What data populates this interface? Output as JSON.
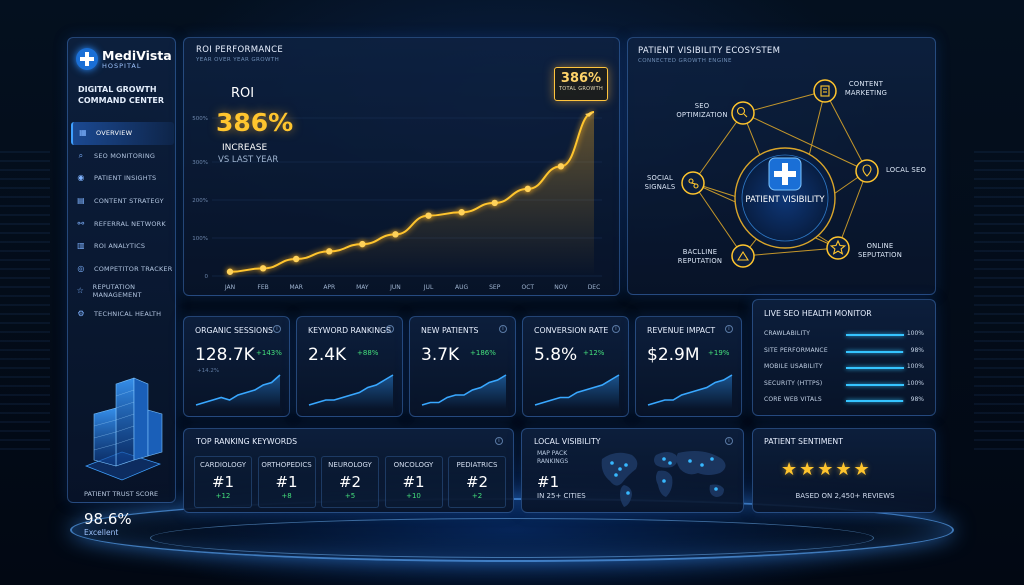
{
  "brand": {
    "name": "MediVista",
    "sub": "HOSPITAL"
  },
  "app_title": "DIGITAL GROWTH COMMAND CENTER",
  "sidebar": {
    "items": [
      {
        "label": "OVERVIEW",
        "icon": "grid-icon"
      },
      {
        "label": "SEO MONITORING",
        "icon": "search-icon"
      },
      {
        "label": "PATIENT INSIGHTS",
        "icon": "users-icon"
      },
      {
        "label": "CONTENT STRATEGY",
        "icon": "document-icon"
      },
      {
        "label": "REFERRAL NETWORK",
        "icon": "network-icon"
      },
      {
        "label": "ROI ANALYTICS",
        "icon": "chart-icon"
      },
      {
        "label": "COMPETITOR TRACKER",
        "icon": "target-icon"
      },
      {
        "label": "REPUTATION MANAGEMENT",
        "icon": "star-icon"
      },
      {
        "label": "TECHNICAL HEALTH",
        "icon": "gear-icon"
      }
    ],
    "active_index": 0,
    "trust": {
      "label": "PATIENT TRUST SCORE",
      "value": "98.6%",
      "status": "Excellent"
    }
  },
  "roi_panel": {
    "title": "ROI PERFORMANCE",
    "subtitle": "YEAR OVER YEAR GROWTH",
    "roi_label": "ROI",
    "roi_value": "386%",
    "increase_label": "INCREASE",
    "vs_label": "VS LAST YEAR",
    "callout_value": "386%",
    "callout_label": "TOTAL GROWTH"
  },
  "chart_data": {
    "type": "line",
    "categories": [
      "JAN",
      "FEB",
      "MAR",
      "APR",
      "MAY",
      "JUN",
      "JUL",
      "AUG",
      "SEP",
      "OCT",
      "NOV",
      "DEC"
    ],
    "yticks": [
      "0",
      "100%",
      "200%",
      "300%",
      "500%"
    ],
    "series": [
      {
        "values": [
          10,
          18,
          40,
          58,
          75,
          98,
          142,
          150,
          172,
          205,
          258,
          386
        ]
      }
    ],
    "ylim": [
      0,
      400
    ],
    "grid": true
  },
  "ecosystem": {
    "title": "PATIENT VISIBILITY ECOSYSTEM",
    "subtitle": "CONNECTED GROWTH ENGINE",
    "center": "PATIENT VISIBILITY",
    "nodes": [
      {
        "label": "SEO OPTIMIZATION",
        "icon": "seo-icon"
      },
      {
        "label": "CONTENT MARKETING",
        "icon": "content-icon"
      },
      {
        "label": "SOCIAL SIGNALS",
        "icon": "social-icon"
      },
      {
        "label": "LOCAL SEO",
        "icon": "location-icon"
      },
      {
        "label": "BACLLINE REPUTATION",
        "icon": "backlink-icon"
      },
      {
        "label": "ONLINE SEPUTATION",
        "icon": "reputation-icon"
      }
    ]
  },
  "kpis": [
    {
      "title": "ORGANIC SESSIONS",
      "value": "128.7K",
      "delta": "+143%",
      "extra": "+14.2%",
      "spark": [
        3,
        4,
        5,
        6,
        5,
        7,
        8,
        9,
        11,
        12,
        15
      ]
    },
    {
      "title": "KEYWORD RANKINGS",
      "value": "2.4K",
      "delta": "+88%",
      "extra": "",
      "spark": [
        3,
        4,
        5,
        5,
        6,
        7,
        8,
        10,
        11,
        13,
        15
      ]
    },
    {
      "title": "NEW PATIENTS",
      "value": "3.7K",
      "delta": "+186%",
      "extra": "",
      "spark": [
        3,
        4,
        4,
        6,
        7,
        7,
        9,
        10,
        12,
        13,
        15
      ]
    },
    {
      "title": "CONVERSION RATE",
      "value": "5.8%",
      "delta": "+12%",
      "extra": "",
      "spark": [
        3,
        4,
        5,
        6,
        6,
        8,
        9,
        10,
        11,
        13,
        15
      ]
    },
    {
      "title": "REVENUE IMPACT",
      "value": "$2.9M",
      "delta": "+19%",
      "extra": "",
      "spark": [
        3,
        4,
        5,
        5,
        7,
        8,
        9,
        10,
        12,
        13,
        15
      ]
    }
  ],
  "health": {
    "title": "LIVE SEO HEALTH MONITOR",
    "rows": [
      {
        "label": "CRAWLABILITY",
        "pct": "100%",
        "value": 1.0
      },
      {
        "label": "SITE PERFORMANCE",
        "pct": "98%",
        "value": 0.98
      },
      {
        "label": "MOBILE USABILITY",
        "pct": "100%",
        "value": 1.0
      },
      {
        "label": "SECURITY (HTTPS)",
        "pct": "100%",
        "value": 1.0
      },
      {
        "label": "CORE WEB VITALS",
        "pct": "98%",
        "value": 0.98
      }
    ]
  },
  "keywords": {
    "title": "TOP RANKING KEYWORDS",
    "items": [
      {
        "name": "CARDIOLOGY",
        "rank": "#1",
        "delta": "+12"
      },
      {
        "name": "ORTHOPEDICS",
        "rank": "#1",
        "delta": "+8"
      },
      {
        "name": "NEUROLOGY",
        "rank": "#2",
        "delta": "+5"
      },
      {
        "name": "ONCOLOGY",
        "rank": "#1",
        "delta": "+10"
      },
      {
        "name": "PEDIATRICS",
        "rank": "#2",
        "delta": "+2"
      }
    ]
  },
  "local": {
    "title": "LOCAL VISIBILITY",
    "map_label": "MAP PACK RANKINGS",
    "value": "#1",
    "sub": "IN 25+ CITIES"
  },
  "sentiment": {
    "title": "PATIENT SENTIMENT",
    "stars": "★★★★★",
    "rating": 5,
    "sub": "BASED ON 2,450+ REVIEWS"
  },
  "colors": {
    "accent": "#3fa0ff",
    "gold": "#ffc52e",
    "positive": "#44e07c",
    "bar": "#35c4ff"
  }
}
